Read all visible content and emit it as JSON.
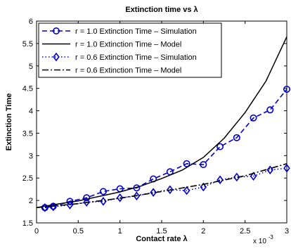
{
  "chart_data": {
    "type": "line",
    "title": "Extinction time vs λ",
    "xlabel": "Contact rate λ",
    "ylabel": "Extinction Time",
    "x_multiplier_label": "x 10",
    "x_multiplier_exponent": "-3",
    "xlim": [
      0,
      3
    ],
    "ylim": [
      1.5,
      6
    ],
    "xticks": [
      0,
      0.5,
      1,
      1.5,
      2,
      2.5,
      3
    ],
    "xtick_labels": [
      "0",
      "0.5",
      "1",
      "1.5",
      "2",
      "2.5",
      "3"
    ],
    "yticks": [
      1.5,
      2,
      2.5,
      3,
      3.5,
      4,
      4.5,
      5,
      5.5,
      6
    ],
    "ytick_labels": [
      "1.5",
      "2",
      "2.5",
      "3",
      "3.5",
      "4",
      "4.5",
      "5",
      "5.5",
      "6"
    ],
    "grid": false,
    "legend_position": "top-left",
    "series": [
      {
        "name": "r = 1.0 Extinction Time – Simulation",
        "color": "#0000cc",
        "line": "dashed",
        "marker": "circle",
        "x": [
          0.1,
          0.2,
          0.4,
          0.6,
          0.8,
          1.0,
          1.2,
          1.4,
          1.6,
          1.8,
          2.0,
          2.2,
          2.4,
          2.6,
          2.8,
          3.0
        ],
        "y": [
          1.84,
          1.87,
          1.98,
          2.06,
          2.2,
          2.26,
          2.28,
          2.48,
          2.64,
          2.82,
          2.8,
          3.2,
          3.4,
          3.84,
          4.02,
          4.48
        ]
      },
      {
        "name": "r = 1.0 Extinction Time – Model",
        "color": "#000000",
        "line": "solid",
        "marker": "none",
        "x": [
          0.0,
          0.25,
          0.5,
          0.75,
          1.0,
          1.25,
          1.5,
          1.75,
          2.0,
          2.25,
          2.5,
          2.75,
          3.0
        ],
        "y": [
          1.84,
          1.92,
          1.99,
          2.09,
          2.19,
          2.32,
          2.49,
          2.68,
          2.96,
          3.39,
          3.96,
          4.66,
          5.65
        ]
      },
      {
        "name": "r = 0.6 Extinction Time – Simulation",
        "color": "#0000cc",
        "line": "dotted",
        "marker": "diamond",
        "x": [
          0.1,
          0.2,
          0.4,
          0.6,
          0.8,
          1.0,
          1.2,
          1.4,
          1.6,
          1.8,
          2.0,
          2.2,
          2.4,
          2.6,
          2.8,
          3.0
        ],
        "y": [
          1.84,
          1.86,
          1.9,
          1.96,
          1.98,
          2.06,
          2.1,
          2.18,
          2.24,
          2.22,
          2.3,
          2.46,
          2.52,
          2.54,
          2.68,
          2.72
        ]
      },
      {
        "name": "r = 0.6 Extinction Time – Model",
        "color": "#000000",
        "line": "dashdot",
        "marker": "none",
        "x": [
          0.0,
          0.5,
          1.0,
          1.5,
          2.0,
          2.5,
          3.0
        ],
        "y": [
          1.84,
          1.93,
          2.05,
          2.2,
          2.36,
          2.55,
          2.82
        ]
      }
    ]
  }
}
